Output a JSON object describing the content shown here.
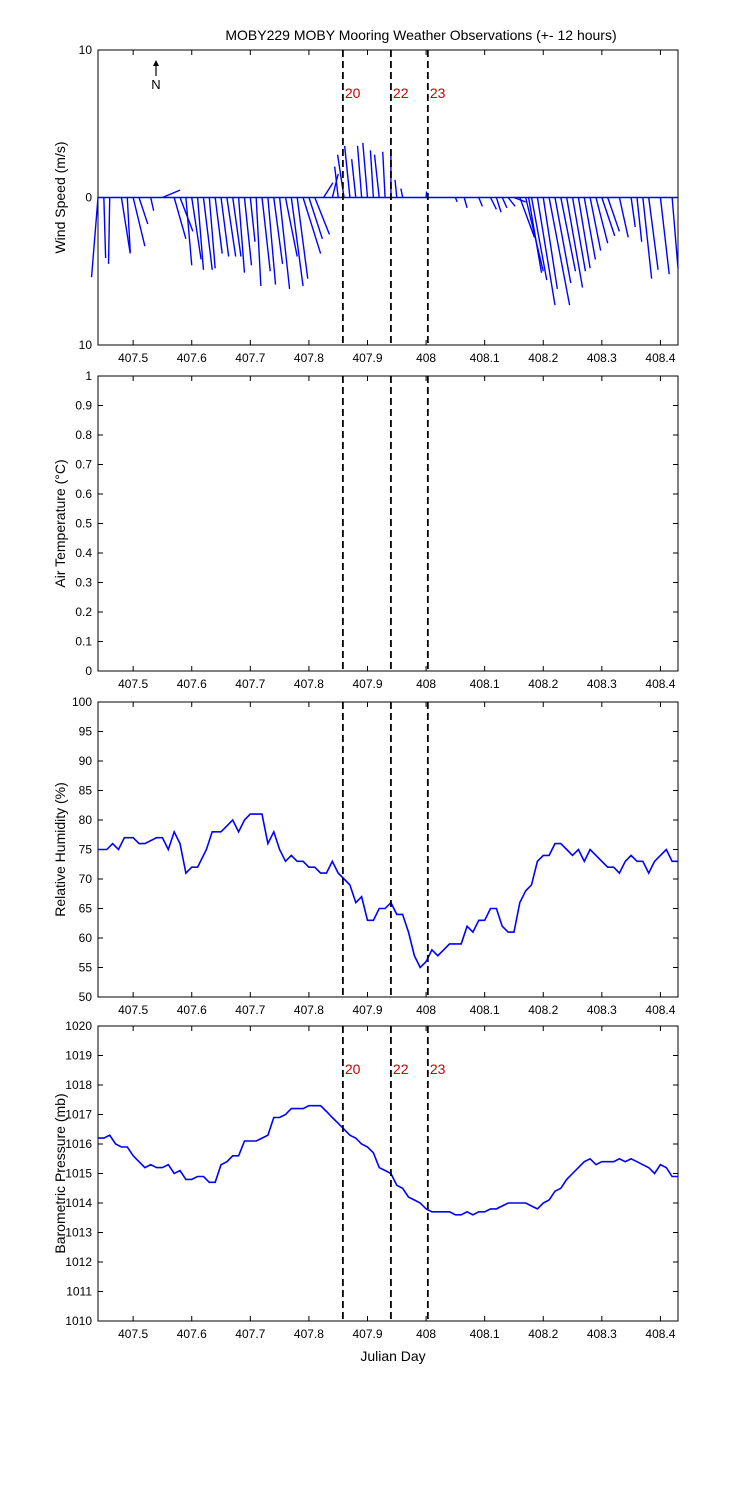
{
  "figure": {
    "title": "MOBY229 MOBY Mooring Weather Observations (+- 12 hours)",
    "xlabel": "Julian Day",
    "north_label": "N",
    "colors": {
      "series": "#0000ff",
      "event_label": "#cc0000",
      "axes": "#000000",
      "background": "#ffffff"
    }
  },
  "chart_data": [
    {
      "type": "line",
      "subtype": "wind-stick",
      "ylabel": "Wind Speed (m/s)",
      "xlim": [
        407.44,
        408.43
      ],
      "ylim": [
        -10,
        10
      ],
      "yticks": [
        {
          "v": 10,
          "label": "10"
        },
        {
          "v": 0,
          "label": "0"
        },
        {
          "v": -10,
          "label": "10"
        }
      ],
      "xticks": [
        407.5,
        407.6,
        407.7,
        407.8,
        407.9,
        408,
        408.1,
        408.2,
        408.3,
        408.4
      ],
      "xtick_labels": [
        "407.5",
        "407.6",
        "407.7",
        "407.8",
        "407.9",
        "408",
        "408.1",
        "408.2",
        "408.3",
        "408.4"
      ],
      "events": [
        {
          "x": 407.858,
          "label": "20"
        },
        {
          "x": 407.94,
          "label": "22"
        },
        {
          "x": 408.003,
          "label": "23"
        }
      ],
      "sticks": [
        [
          407.44,
          -1.1,
          -5.4
        ],
        [
          407.45,
          0.3,
          -4.1
        ],
        [
          407.46,
          -0.2,
          -4.5
        ],
        [
          407.48,
          1.5,
          -3.8
        ],
        [
          407.49,
          0.5,
          -3.7
        ],
        [
          407.5,
          2.0,
          -3.3
        ],
        [
          407.51,
          1.5,
          -1.8
        ],
        [
          407.53,
          0.5,
          -0.9
        ],
        [
          407.55,
          3.0,
          0.5
        ],
        [
          407.57,
          2.0,
          -2.8
        ],
        [
          407.58,
          2.2,
          -2.3
        ],
        [
          407.59,
          1.0,
          -4.6
        ],
        [
          407.6,
          1.6,
          -4.2
        ],
        [
          407.61,
          1.0,
          -4.9
        ],
        [
          407.62,
          1.5,
          -4.9
        ],
        [
          407.63,
          1.0,
          -4.8
        ],
        [
          407.64,
          1.2,
          -3.8
        ],
        [
          407.65,
          1.3,
          -4.0
        ],
        [
          407.66,
          1.5,
          -4.0
        ],
        [
          407.67,
          1.4,
          -4.0
        ],
        [
          407.68,
          1.0,
          -5.1
        ],
        [
          407.69,
          1.2,
          -4.6
        ],
        [
          407.7,
          0.8,
          -3.0
        ],
        [
          407.71,
          0.8,
          -6.0
        ],
        [
          407.72,
          1.4,
          -5.0
        ],
        [
          407.73,
          1.3,
          -5.9
        ],
        [
          407.74,
          1.5,
          -4.5
        ],
        [
          407.75,
          1.7,
          -6.2
        ],
        [
          407.76,
          2.0,
          -4.0
        ],
        [
          407.77,
          2.0,
          -6.0
        ],
        [
          407.78,
          1.8,
          -5.5
        ],
        [
          407.79,
          3.0,
          -3.8
        ],
        [
          407.8,
          2.3,
          -2.8
        ],
        [
          407.81,
          2.5,
          -2.5
        ],
        [
          407.825,
          1.6,
          1.0
        ],
        [
          407.84,
          1.0,
          1.6
        ],
        [
          407.85,
          -0.6,
          2.1
        ],
        [
          407.86,
          -1.1,
          2.9
        ],
        [
          407.87,
          -0.9,
          3.5
        ],
        [
          407.88,
          -0.7,
          2.6
        ],
        [
          407.89,
          -0.7,
          3.5
        ],
        [
          407.9,
          -0.8,
          3.7
        ],
        [
          407.91,
          -0.5,
          3.2
        ],
        [
          407.92,
          -0.8,
          2.9
        ],
        [
          407.93,
          -0.4,
          3.1
        ],
        [
          407.94,
          0.0,
          3.2
        ],
        [
          407.95,
          -0.3,
          1.2
        ],
        [
          407.96,
          -0.3,
          0.6
        ],
        [
          408.0,
          0.1,
          0.4
        ],
        [
          408.05,
          0.3,
          -0.3
        ],
        [
          408.065,
          0.5,
          -0.7
        ],
        [
          408.09,
          0.6,
          -0.6
        ],
        [
          408.11,
          1.0,
          -0.8
        ],
        [
          408.12,
          0.8,
          -1.0
        ],
        [
          408.13,
          0.8,
          -0.7
        ],
        [
          408.14,
          1.2,
          -0.6
        ],
        [
          408.15,
          2.0,
          -0.3
        ],
        [
          408.16,
          2.5,
          -2.7
        ],
        [
          408.17,
          3.0,
          -5.0
        ],
        [
          408.175,
          2.2,
          -5.1
        ],
        [
          408.18,
          2.6,
          -5.6
        ],
        [
          408.19,
          3.0,
          -7.3
        ],
        [
          408.2,
          2.4,
          -6.2
        ],
        [
          408.21,
          3.5,
          -7.3
        ],
        [
          408.22,
          2.7,
          -5.8
        ],
        [
          408.23,
          2.5,
          -5.0
        ],
        [
          408.24,
          2.7,
          -6.1
        ],
        [
          408.25,
          2.2,
          -5.0
        ],
        [
          408.26,
          2.0,
          -4.8
        ],
        [
          408.27,
          1.9,
          -4.2
        ],
        [
          408.28,
          1.8,
          -3.6
        ],
        [
          408.29,
          2.0,
          -3.1
        ],
        [
          408.3,
          2.2,
          -2.6
        ],
        [
          408.31,
          2.0,
          -2.3
        ],
        [
          408.33,
          1.5,
          -2.7
        ],
        [
          408.35,
          0.7,
          -2.0
        ],
        [
          408.36,
          0.8,
          -3.0
        ],
        [
          408.37,
          1.5,
          -5.5
        ],
        [
          408.38,
          1.6,
          -4.9
        ],
        [
          408.4,
          1.5,
          -5.2
        ],
        [
          408.42,
          1.0,
          -4.8
        ]
      ]
    },
    {
      "type": "line",
      "ylabel": "Air Temperature (°C)",
      "xlim": [
        407.44,
        408.43
      ],
      "ylim": [
        0,
        1
      ],
      "yticks": [
        {
          "v": 0,
          "label": "0"
        },
        {
          "v": 0.1,
          "label": "0.1"
        },
        {
          "v": 0.2,
          "label": "0.2"
        },
        {
          "v": 0.3,
          "label": "0.3"
        },
        {
          "v": 0.4,
          "label": "0.4"
        },
        {
          "v": 0.5,
          "label": "0.5"
        },
        {
          "v": 0.6,
          "label": "0.6"
        },
        {
          "v": 0.7,
          "label": "0.7"
        },
        {
          "v": 0.8,
          "label": "0.8"
        },
        {
          "v": 0.9,
          "label": "0.9"
        },
        {
          "v": 1,
          "label": "1"
        }
      ],
      "xticks": [
        407.5,
        407.6,
        407.7,
        407.8,
        407.9,
        408,
        408.1,
        408.2,
        408.3,
        408.4
      ],
      "xtick_labels": [
        "407.5",
        "407.6",
        "407.7",
        "407.8",
        "407.9",
        "408",
        "408.1",
        "408.2",
        "408.3",
        "408.4"
      ],
      "events": [
        {
          "x": 407.858,
          "label": ""
        },
        {
          "x": 407.94,
          "label": ""
        },
        {
          "x": 408.003,
          "label": ""
        }
      ],
      "x": [],
      "y": []
    },
    {
      "type": "line",
      "ylabel": "Relative Humidity (%)",
      "xlim": [
        407.44,
        408.43
      ],
      "ylim": [
        50,
        100
      ],
      "yticks": [
        {
          "v": 50,
          "label": "50"
        },
        {
          "v": 55,
          "label": "55"
        },
        {
          "v": 60,
          "label": "60"
        },
        {
          "v": 65,
          "label": "65"
        },
        {
          "v": 70,
          "label": "70"
        },
        {
          "v": 75,
          "label": "75"
        },
        {
          "v": 80,
          "label": "80"
        },
        {
          "v": 85,
          "label": "85"
        },
        {
          "v": 90,
          "label": "90"
        },
        {
          "v": 95,
          "label": "95"
        },
        {
          "v": 100,
          "label": "100"
        }
      ],
      "xticks": [
        407.5,
        407.6,
        407.7,
        407.8,
        407.9,
        408,
        408.1,
        408.2,
        408.3,
        408.4
      ],
      "xtick_labels": [
        "407.5",
        "407.6",
        "407.7",
        "407.8",
        "407.9",
        "408",
        "408.1",
        "408.2",
        "408.3",
        "408.4"
      ],
      "events": [
        {
          "x": 407.858,
          "label": ""
        },
        {
          "x": 407.94,
          "label": ""
        },
        {
          "x": 408.003,
          "label": ""
        }
      ],
      "x": [
        407.44,
        407.455,
        407.465,
        407.475,
        407.485,
        407.5,
        407.51,
        407.52,
        407.54,
        407.55,
        407.56,
        407.57,
        407.58,
        407.59,
        407.6,
        407.61,
        407.625,
        407.635,
        407.65,
        407.66,
        407.67,
        407.68,
        407.69,
        407.7,
        407.71,
        407.72,
        407.73,
        407.74,
        407.75,
        407.76,
        407.77,
        407.78,
        407.79,
        407.8,
        407.81,
        407.82,
        407.83,
        407.84,
        407.85,
        407.86,
        407.87,
        407.88,
        407.89,
        407.9,
        407.91,
        407.92,
        407.93,
        407.94,
        407.95,
        407.96,
        407.97,
        407.98,
        407.99,
        408.0,
        408.01,
        408.02,
        408.03,
        408.04,
        408.05,
        408.06,
        408.07,
        408.08,
        408.09,
        408.1,
        408.11,
        408.12,
        408.13,
        408.14,
        408.15,
        408.16,
        408.17,
        408.18,
        408.19,
        408.2,
        408.21,
        408.22,
        408.23,
        408.24,
        408.25,
        408.26,
        408.27,
        408.28,
        408.29,
        408.3,
        408.31,
        408.32,
        408.33,
        408.34,
        408.35,
        408.36,
        408.37,
        408.38,
        408.39,
        408.4,
        408.41,
        408.42,
        408.43
      ],
      "y": [
        75,
        75,
        76,
        75,
        77,
        77,
        76,
        76,
        77,
        77,
        75,
        78,
        76,
        71,
        72,
        72,
        75,
        78,
        78,
        79,
        80,
        78,
        80,
        81,
        81,
        81,
        76,
        78,
        75,
        73,
        74,
        73,
        73,
        72,
        72,
        71,
        71,
        73,
        71,
        70,
        69,
        66,
        67,
        63,
        63,
        65,
        65,
        66,
        64,
        64,
        61,
        57,
        55,
        56,
        58,
        57,
        58,
        59,
        59,
        59,
        62,
        61,
        63,
        63,
        65,
        65,
        62,
        61,
        61,
        66,
        68,
        69,
        73,
        74,
        74,
        76,
        76,
        75,
        74,
        75,
        73,
        75,
        74,
        73,
        72,
        72,
        71,
        73,
        74,
        73,
        73,
        71,
        73,
        74,
        75,
        73,
        73
      ]
    },
    {
      "type": "line",
      "ylabel": "Barometric Pressure (mb)",
      "xlim": [
        407.44,
        408.43
      ],
      "ylim": [
        1010,
        1020
      ],
      "yticks": [
        {
          "v": 1010,
          "label": "1010"
        },
        {
          "v": 1011,
          "label": "1011"
        },
        {
          "v": 1012,
          "label": "1012"
        },
        {
          "v": 1013,
          "label": "1013"
        },
        {
          "v": 1014,
          "label": "1014"
        },
        {
          "v": 1015,
          "label": "1015"
        },
        {
          "v": 1016,
          "label": "1016"
        },
        {
          "v": 1017,
          "label": "1017"
        },
        {
          "v": 1018,
          "label": "1018"
        },
        {
          "v": 1019,
          "label": "1019"
        },
        {
          "v": 1020,
          "label": "1020"
        }
      ],
      "xticks": [
        407.5,
        407.6,
        407.7,
        407.8,
        407.9,
        408,
        408.1,
        408.2,
        408.3,
        408.4
      ],
      "xtick_labels": [
        "407.5",
        "407.6",
        "407.7",
        "407.8",
        "407.9",
        "408",
        "408.1",
        "408.2",
        "408.3",
        "408.4"
      ],
      "events": [
        {
          "x": 407.858,
          "label": "20"
        },
        {
          "x": 407.94,
          "label": "22"
        },
        {
          "x": 408.003,
          "label": "23"
        }
      ],
      "x": [
        407.44,
        407.45,
        407.46,
        407.47,
        407.48,
        407.49,
        407.5,
        407.51,
        407.52,
        407.53,
        407.54,
        407.55,
        407.56,
        407.57,
        407.58,
        407.59,
        407.6,
        407.61,
        407.62,
        407.63,
        407.64,
        407.65,
        407.66,
        407.67,
        407.68,
        407.69,
        407.7,
        407.71,
        407.72,
        407.73,
        407.74,
        407.75,
        407.76,
        407.77,
        407.78,
        407.79,
        407.8,
        407.81,
        407.82,
        407.83,
        407.84,
        407.85,
        407.86,
        407.87,
        407.88,
        407.89,
        407.9,
        407.91,
        407.92,
        407.93,
        407.94,
        407.95,
        407.96,
        407.97,
        407.98,
        407.99,
        408.0,
        408.01,
        408.02,
        408.03,
        408.04,
        408.05,
        408.06,
        408.07,
        408.08,
        408.09,
        408.1,
        408.11,
        408.12,
        408.13,
        408.14,
        408.15,
        408.16,
        408.17,
        408.18,
        408.19,
        408.2,
        408.21,
        408.22,
        408.23,
        408.24,
        408.25,
        408.26,
        408.27,
        408.28,
        408.29,
        408.3,
        408.31,
        408.32,
        408.33,
        408.34,
        408.35,
        408.36,
        408.37,
        408.38,
        408.39,
        408.4,
        408.41,
        408.42,
        408.43
      ],
      "y": [
        1016.2,
        1016.2,
        1016.3,
        1016.0,
        1015.9,
        1015.9,
        1015.6,
        1015.4,
        1015.2,
        1015.3,
        1015.2,
        1015.2,
        1015.3,
        1015.0,
        1015.1,
        1014.8,
        1014.8,
        1014.9,
        1014.9,
        1014.7,
        1014.7,
        1015.3,
        1015.4,
        1015.6,
        1015.6,
        1016.1,
        1016.1,
        1016.1,
        1016.2,
        1016.3,
        1016.9,
        1016.9,
        1017.0,
        1017.2,
        1017.2,
        1017.2,
        1017.3,
        1017.3,
        1017.3,
        1017.1,
        1016.9,
        1016.7,
        1016.5,
        1016.3,
        1016.2,
        1016.0,
        1015.9,
        1015.7,
        1015.2,
        1015.1,
        1015.0,
        1014.6,
        1014.5,
        1014.2,
        1014.1,
        1014.0,
        1013.8,
        1013.7,
        1013.7,
        1013.7,
        1013.7,
        1013.6,
        1013.6,
        1013.7,
        1013.6,
        1013.7,
        1013.7,
        1013.8,
        1013.8,
        1013.9,
        1014.0,
        1014.0,
        1014.0,
        1014.0,
        1013.9,
        1013.8,
        1014.0,
        1014.1,
        1014.4,
        1014.5,
        1014.8,
        1015.0,
        1015.2,
        1015.4,
        1015.5,
        1015.3,
        1015.4,
        1015.4,
        1015.4,
        1015.5,
        1015.4,
        1015.5,
        1015.4,
        1015.3,
        1015.2,
        1015.0,
        1015.3,
        1015.2,
        1014.9,
        1014.9
      ]
    }
  ]
}
